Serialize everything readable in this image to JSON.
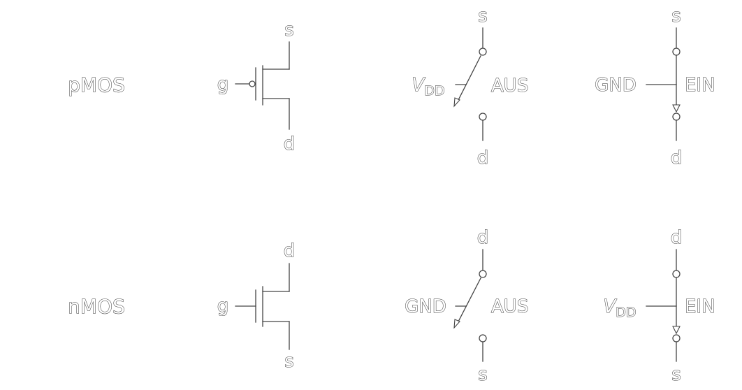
{
  "colors": {
    "line": "#444444",
    "text_outline": "#333333",
    "background": "#ffffff"
  },
  "rows": [
    {
      "name": "pMOS",
      "transistor": {
        "gate": "g",
        "top": "s",
        "bottom": "d",
        "gate_bubble": true
      },
      "off_state": {
        "control": "V",
        "control_sub": "DD",
        "state": "AUS",
        "top": "s",
        "bottom": "d"
      },
      "on_state": {
        "control": "GND",
        "control_sub": "",
        "state": "EIN",
        "top": "s",
        "bottom": "d"
      }
    },
    {
      "name": "nMOS",
      "transistor": {
        "gate": "g",
        "top": "d",
        "bottom": "s",
        "gate_bubble": false
      },
      "off_state": {
        "control": "GND",
        "control_sub": "",
        "state": "AUS",
        "top": "d",
        "bottom": "s"
      },
      "on_state": {
        "control": "V",
        "control_sub": "DD",
        "state": "EIN",
        "top": "d",
        "bottom": "s"
      }
    }
  ]
}
